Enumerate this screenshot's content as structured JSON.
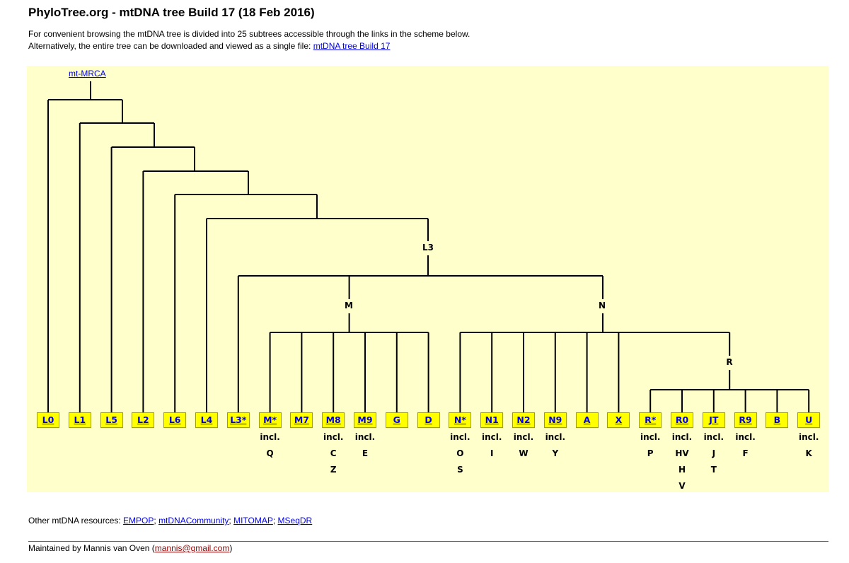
{
  "title": "PhyloTree.org - mtDNA tree Build 17 (18 Feb 2016)",
  "intro": {
    "line1": "For convenient browsing the mtDNA tree is divided into 25 subtrees accessible through the links in the scheme below.",
    "line2_prefix": "Alternatively, the entire tree can be downloaded and viewed as a single file: ",
    "download_link": "mtDNA tree Build 17"
  },
  "tree": {
    "root_label": "mt-MRCA",
    "clades": {
      "L3": "L3",
      "M": "M",
      "N": "N",
      "R": "R"
    },
    "leaves": [
      {
        "label": "L0",
        "sub": []
      },
      {
        "label": "L1",
        "sub": []
      },
      {
        "label": "L5",
        "sub": []
      },
      {
        "label": "L2",
        "sub": []
      },
      {
        "label": "L6",
        "sub": []
      },
      {
        "label": "L4",
        "sub": []
      },
      {
        "label": "L3*",
        "sub": []
      },
      {
        "label": "M*",
        "sub": [
          "incl.",
          "Q"
        ]
      },
      {
        "label": "M7",
        "sub": []
      },
      {
        "label": "M8",
        "sub": [
          "incl.",
          "C",
          "Z"
        ]
      },
      {
        "label": "M9",
        "sub": [
          "incl.",
          "E"
        ]
      },
      {
        "label": "G",
        "sub": []
      },
      {
        "label": "D",
        "sub": []
      },
      {
        "label": "N*",
        "sub": [
          "incl.",
          "O",
          "S"
        ]
      },
      {
        "label": "N1",
        "sub": [
          "incl.",
          "I"
        ]
      },
      {
        "label": "N2",
        "sub": [
          "incl.",
          "W"
        ]
      },
      {
        "label": "N9",
        "sub": [
          "incl.",
          "Y"
        ]
      },
      {
        "label": "A",
        "sub": []
      },
      {
        "label": "X",
        "sub": []
      },
      {
        "label": "R*",
        "sub": [
          "incl.",
          "P"
        ]
      },
      {
        "label": "R0",
        "sub": [
          "incl.",
          "HV",
          "H",
          "V"
        ]
      },
      {
        "label": "JT",
        "sub": [
          "incl.",
          "J",
          "T"
        ]
      },
      {
        "label": "R9",
        "sub": [
          "incl.",
          "F"
        ]
      },
      {
        "label": "B",
        "sub": []
      },
      {
        "label": "U",
        "sub": [
          "incl.",
          "K"
        ]
      }
    ]
  },
  "resources": {
    "prefix": "Other mtDNA resources: ",
    "links": [
      "EMPOP",
      "mtDNACommunity",
      "MITOMAP",
      "MSeqDR"
    ],
    "separator": "; "
  },
  "footer": {
    "prefix": "Maintained by Mannis van Oven (",
    "email": "mannis@gmail.com",
    "suffix": ")"
  }
}
